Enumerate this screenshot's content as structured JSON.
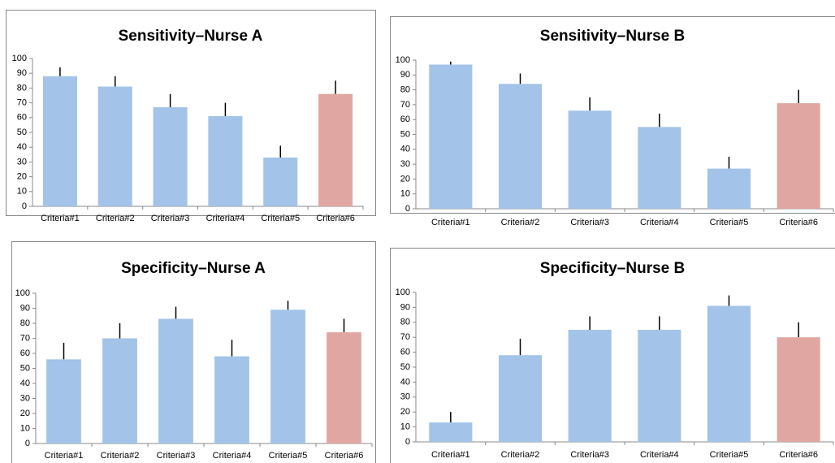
{
  "chart_data": [
    {
      "type": "bar",
      "title": "Sensitivity–Nurse A",
      "categories": [
        "Criteria#1",
        "Criteria#2",
        "Criteria#3",
        "Criteria#4",
        "Criteria#5",
        "Criteria#6"
      ],
      "values": [
        88,
        81,
        67,
        61,
        33,
        76
      ],
      "errors": [
        6,
        7,
        9,
        9,
        8,
        9
      ],
      "colors": [
        "#a3c3e8",
        "#a3c3e8",
        "#a3c3e8",
        "#a3c3e8",
        "#a3c3e8",
        "#e0a7a2"
      ],
      "ylim": [
        0,
        100
      ],
      "yticks": [
        0,
        10,
        20,
        30,
        40,
        50,
        60,
        70,
        80,
        90,
        100
      ]
    },
    {
      "type": "bar",
      "title": "Sensitivity–Nurse B",
      "categories": [
        "Criteria#1",
        "Criteria#2",
        "Criteria#3",
        "Criteria#4",
        "Criteria#5",
        "Criteria#6"
      ],
      "values": [
        97,
        84,
        66,
        55,
        27,
        71
      ],
      "errors": [
        2,
        7,
        9,
        9,
        8,
        9
      ],
      "colors": [
        "#a3c3e8",
        "#a3c3e8",
        "#a3c3e8",
        "#a3c3e8",
        "#a3c3e8",
        "#e0a7a2"
      ],
      "ylim": [
        0,
        100
      ],
      "yticks": [
        0,
        10,
        20,
        30,
        40,
        50,
        60,
        70,
        80,
        90,
        100
      ]
    },
    {
      "type": "bar",
      "title": "Specificity–Nurse A",
      "categories": [
        "Criteria#1",
        "Criteria#2",
        "Criteria#3",
        "Criteria#4",
        "Criteria#5",
        "Criteria#6"
      ],
      "values": [
        56,
        70,
        83,
        58,
        89,
        74
      ],
      "errors": [
        11,
        10,
        8,
        11,
        6,
        9
      ],
      "colors": [
        "#a3c3e8",
        "#a3c3e8",
        "#a3c3e8",
        "#a3c3e8",
        "#a3c3e8",
        "#e0a7a2"
      ],
      "ylim": [
        0,
        100
      ],
      "yticks": [
        0,
        10,
        20,
        30,
        40,
        50,
        60,
        70,
        80,
        90,
        100
      ]
    },
    {
      "type": "bar",
      "title": "Specificity–Nurse B",
      "categories": [
        "Criteria#1",
        "Criteria#2",
        "Criteria#3",
        "Criteria#4",
        "Criteria#5",
        "Criteria#6"
      ],
      "values": [
        13,
        58,
        75,
        75,
        91,
        70
      ],
      "errors": [
        7,
        11,
        9,
        9,
        7,
        10
      ],
      "colors": [
        "#a3c3e8",
        "#a3c3e8",
        "#a3c3e8",
        "#a3c3e8",
        "#a3c3e8",
        "#e0a7a2"
      ],
      "ylim": [
        0,
        100
      ],
      "yticks": [
        0,
        10,
        20,
        30,
        40,
        50,
        60,
        70,
        80,
        90,
        100
      ]
    }
  ]
}
